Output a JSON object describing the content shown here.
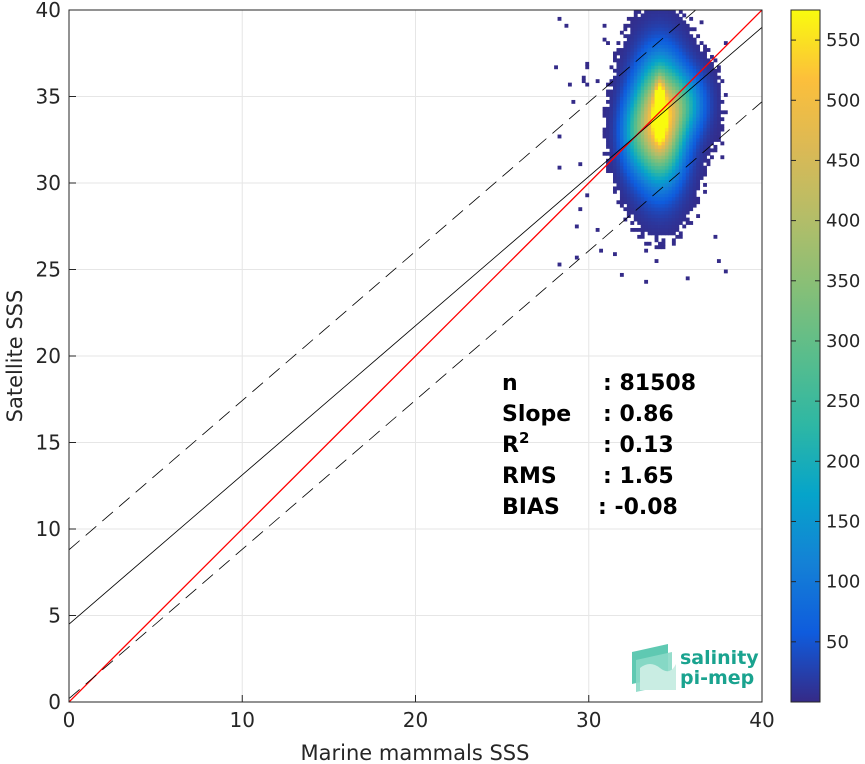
{
  "chart_data": {
    "type": "heatmap",
    "xlabel": "Marine mammals SSS",
    "ylabel": "Satellite SSS",
    "xlim": [
      0,
      40
    ],
    "ylim": [
      0,
      40
    ],
    "xticks": [
      "0",
      "10",
      "20",
      "30",
      "40"
    ],
    "yticks": [
      "0",
      "5",
      "10",
      "15",
      "20",
      "25",
      "30",
      "35",
      "40"
    ],
    "grid": true,
    "colorbar": {
      "range": [
        0,
        575
      ],
      "ticks": [
        "50",
        "100",
        "150",
        "200",
        "250",
        "300",
        "350",
        "400",
        "450",
        "500",
        "550"
      ],
      "colormap": "parula"
    },
    "density_clusters": [
      {
        "x_center": 34.0,
        "y_center": 33.5,
        "x_spread": 0.9,
        "y_spread": 2.2,
        "peak_count": 575
      },
      {
        "x_center": 35.5,
        "y_center": 34.5,
        "x_spread": 0.8,
        "y_spread": 1.2,
        "peak_count": 150
      },
      {
        "x_center": 32.5,
        "y_center": 32.8,
        "x_spread": 0.6,
        "y_spread": 1.5,
        "peak_count": 120
      }
    ],
    "lines": [
      {
        "kind": "identity",
        "color": "#ff0000",
        "x": [
          0,
          40
        ],
        "y": [
          0,
          40
        ]
      },
      {
        "kind": "regression",
        "color": "#000000",
        "x": [
          0,
          40
        ],
        "y": [
          4.5,
          39.0
        ]
      },
      {
        "kind": "upper-bound",
        "color": "#000000",
        "dash": true,
        "x": [
          0,
          40
        ],
        "y": [
          8.8,
          43.3
        ]
      },
      {
        "kind": "lower-bound",
        "color": "#000000",
        "dash": true,
        "x": [
          0,
          40
        ],
        "y": [
          0.2,
          34.7
        ]
      }
    ],
    "stats": [
      {
        "label": "n",
        "value": ": 81508"
      },
      {
        "label": "Slope",
        "value": ": 0.86"
      },
      {
        "label": "R",
        "sup": "2",
        "value": ": 0.13"
      },
      {
        "label": "RMS",
        "value": ": 1.65"
      },
      {
        "label": "BIAS",
        "value": ": -0.08"
      }
    ],
    "logo": {
      "line1": "salinity",
      "line2": "pi-mep"
    },
    "colors": {
      "identity_line": "#ff0000",
      "fit_line": "#000000",
      "logo": "#1aa38f"
    }
  }
}
